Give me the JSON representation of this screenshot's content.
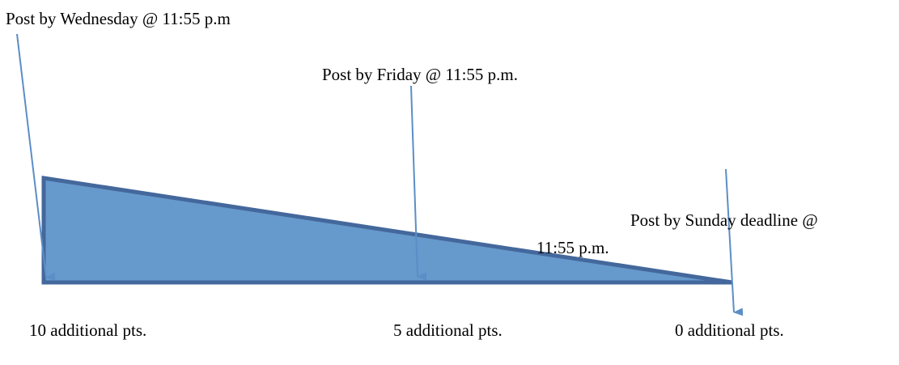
{
  "deadlines": [
    {
      "label": "Post by Wednesday @ 11:55 p.m",
      "points": "10 additional pts."
    },
    {
      "label": "Post by Friday @ 11:55 p.m.",
      "points": "5 additional pts."
    },
    {
      "label_line1": "Post by Sunday deadline @",
      "label_line2": "11:55 p.m.",
      "points": "0 additional pts."
    }
  ],
  "colors": {
    "fill": "#6699cc",
    "outline": "#44689c",
    "arrow": "#5b8ec6",
    "text": "#000000"
  }
}
